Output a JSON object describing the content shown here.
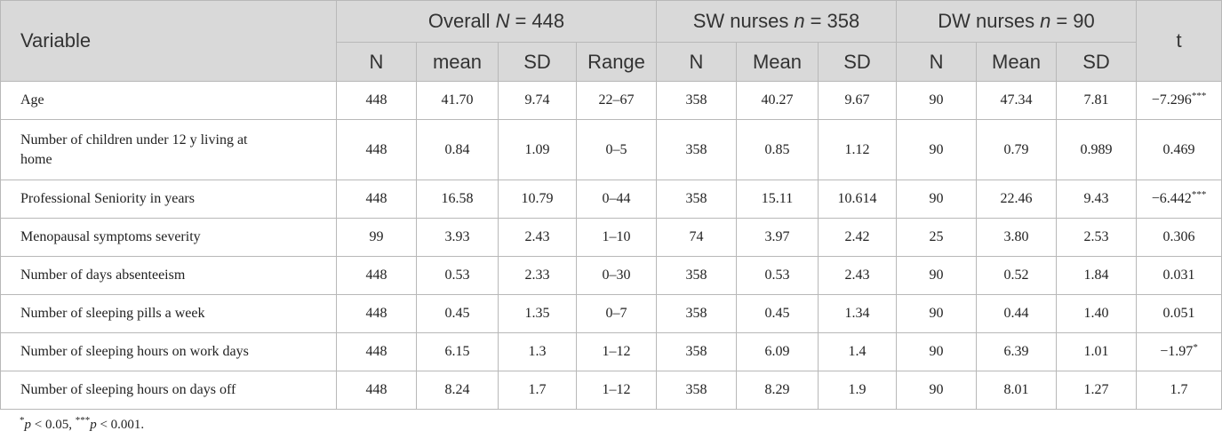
{
  "table": {
    "variable_header": "Variable",
    "groups": [
      {
        "text": "Overall",
        "var": "N",
        "eq": "= 448"
      },
      {
        "text": "SW nurses",
        "var": "n",
        "eq": "= 358"
      },
      {
        "text": "DW nurses",
        "var": "n",
        "eq": "= 90"
      }
    ],
    "t_header": "t",
    "subheaders": [
      [
        "N",
        "mean",
        "SD",
        "Range"
      ],
      [
        "N",
        "Mean",
        "SD"
      ],
      [
        "N",
        "Mean",
        "SD"
      ]
    ],
    "rows": [
      {
        "variable": "Age",
        "cells": [
          "448",
          "41.70",
          "9.74",
          "22–67",
          "358",
          "40.27",
          "9.67",
          "90",
          "47.34",
          "7.81"
        ],
        "t": "−7.296",
        "sig": "***"
      },
      {
        "variable": "Number of children under 12 y living at home",
        "cells": [
          "448",
          "0.84",
          "1.09",
          "0–5",
          "358",
          "0.85",
          "1.12",
          "90",
          "0.79",
          "0.989"
        ],
        "t": "0.469"
      },
      {
        "variable": "Professional Seniority in years",
        "cells": [
          "448",
          "16.58",
          "10.79",
          "0–44",
          "358",
          "15.11",
          "10.614",
          "90",
          "22.46",
          "9.43"
        ],
        "t": "−6.442",
        "sig": "***"
      },
      {
        "variable": "Menopausal symptoms severity",
        "cells": [
          "99",
          "3.93",
          "2.43",
          "1–10",
          "74",
          "3.97",
          "2.42",
          "25",
          "3.80",
          "2.53"
        ],
        "t": "0.306"
      },
      {
        "variable": "Number of days absenteeism",
        "cells": [
          "448",
          "0.53",
          "2.33",
          "0–30",
          "358",
          "0.53",
          "2.43",
          "90",
          "0.52",
          "1.84"
        ],
        "t": "0.031"
      },
      {
        "variable": "Number of sleeping pills a week",
        "cells": [
          "448",
          "0.45",
          "1.35",
          "0–7",
          "358",
          "0.45",
          "1.34",
          "90",
          "0.44",
          "1.40"
        ],
        "t": "0.051"
      },
      {
        "variable": "Number of sleeping hours on work days",
        "cells": [
          "448",
          "6.15",
          "1.3",
          "1–12",
          "358",
          "6.09",
          "1.4",
          "90",
          "6.39",
          "1.01"
        ],
        "t": "−1.97",
        "sig": "*"
      },
      {
        "variable": "Number of sleeping hours on days off",
        "cells": [
          "448",
          "8.24",
          "1.7",
          "1–12",
          "358",
          "8.29",
          "1.9",
          "90",
          "8.01",
          "1.27"
        ],
        "t": "1.7"
      }
    ],
    "footnote": [
      {
        "text": "*",
        "style": "sup"
      },
      {
        "text": "p",
        "style": "italic"
      },
      {
        "text": " < 0.05, ",
        "style": "normal"
      },
      {
        "text": "***",
        "style": "sup"
      },
      {
        "text": "p",
        "style": "italic"
      },
      {
        "text": " < 0.001.",
        "style": "normal"
      }
    ]
  }
}
